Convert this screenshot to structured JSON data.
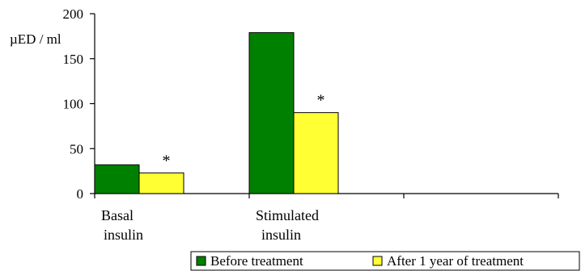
{
  "chart_data": {
    "type": "bar",
    "title": "",
    "xlabel": "",
    "ylabel": "µED / ml",
    "ylim": [
      0,
      200
    ],
    "yticks": [
      0,
      50,
      100,
      150,
      200
    ],
    "grid": false,
    "legend_position": "bottom-right",
    "categories": [
      {
        "label_lines": [
          "Basal",
          "insulin"
        ]
      },
      {
        "label_lines": [
          "Stimulated",
          "insulin"
        ]
      },
      {
        "label_lines": []
      }
    ],
    "series": [
      {
        "name": "Before treatment",
        "color": "#008000",
        "values": [
          32,
          179,
          null
        ]
      },
      {
        "name": "After 1 year of treatment",
        "color": "#ffff33",
        "values": [
          23,
          90,
          null
        ]
      }
    ],
    "annotations": [
      {
        "text": "*",
        "category": 0,
        "series": 1
      },
      {
        "text": "*",
        "category": 1,
        "series": 1
      }
    ]
  }
}
